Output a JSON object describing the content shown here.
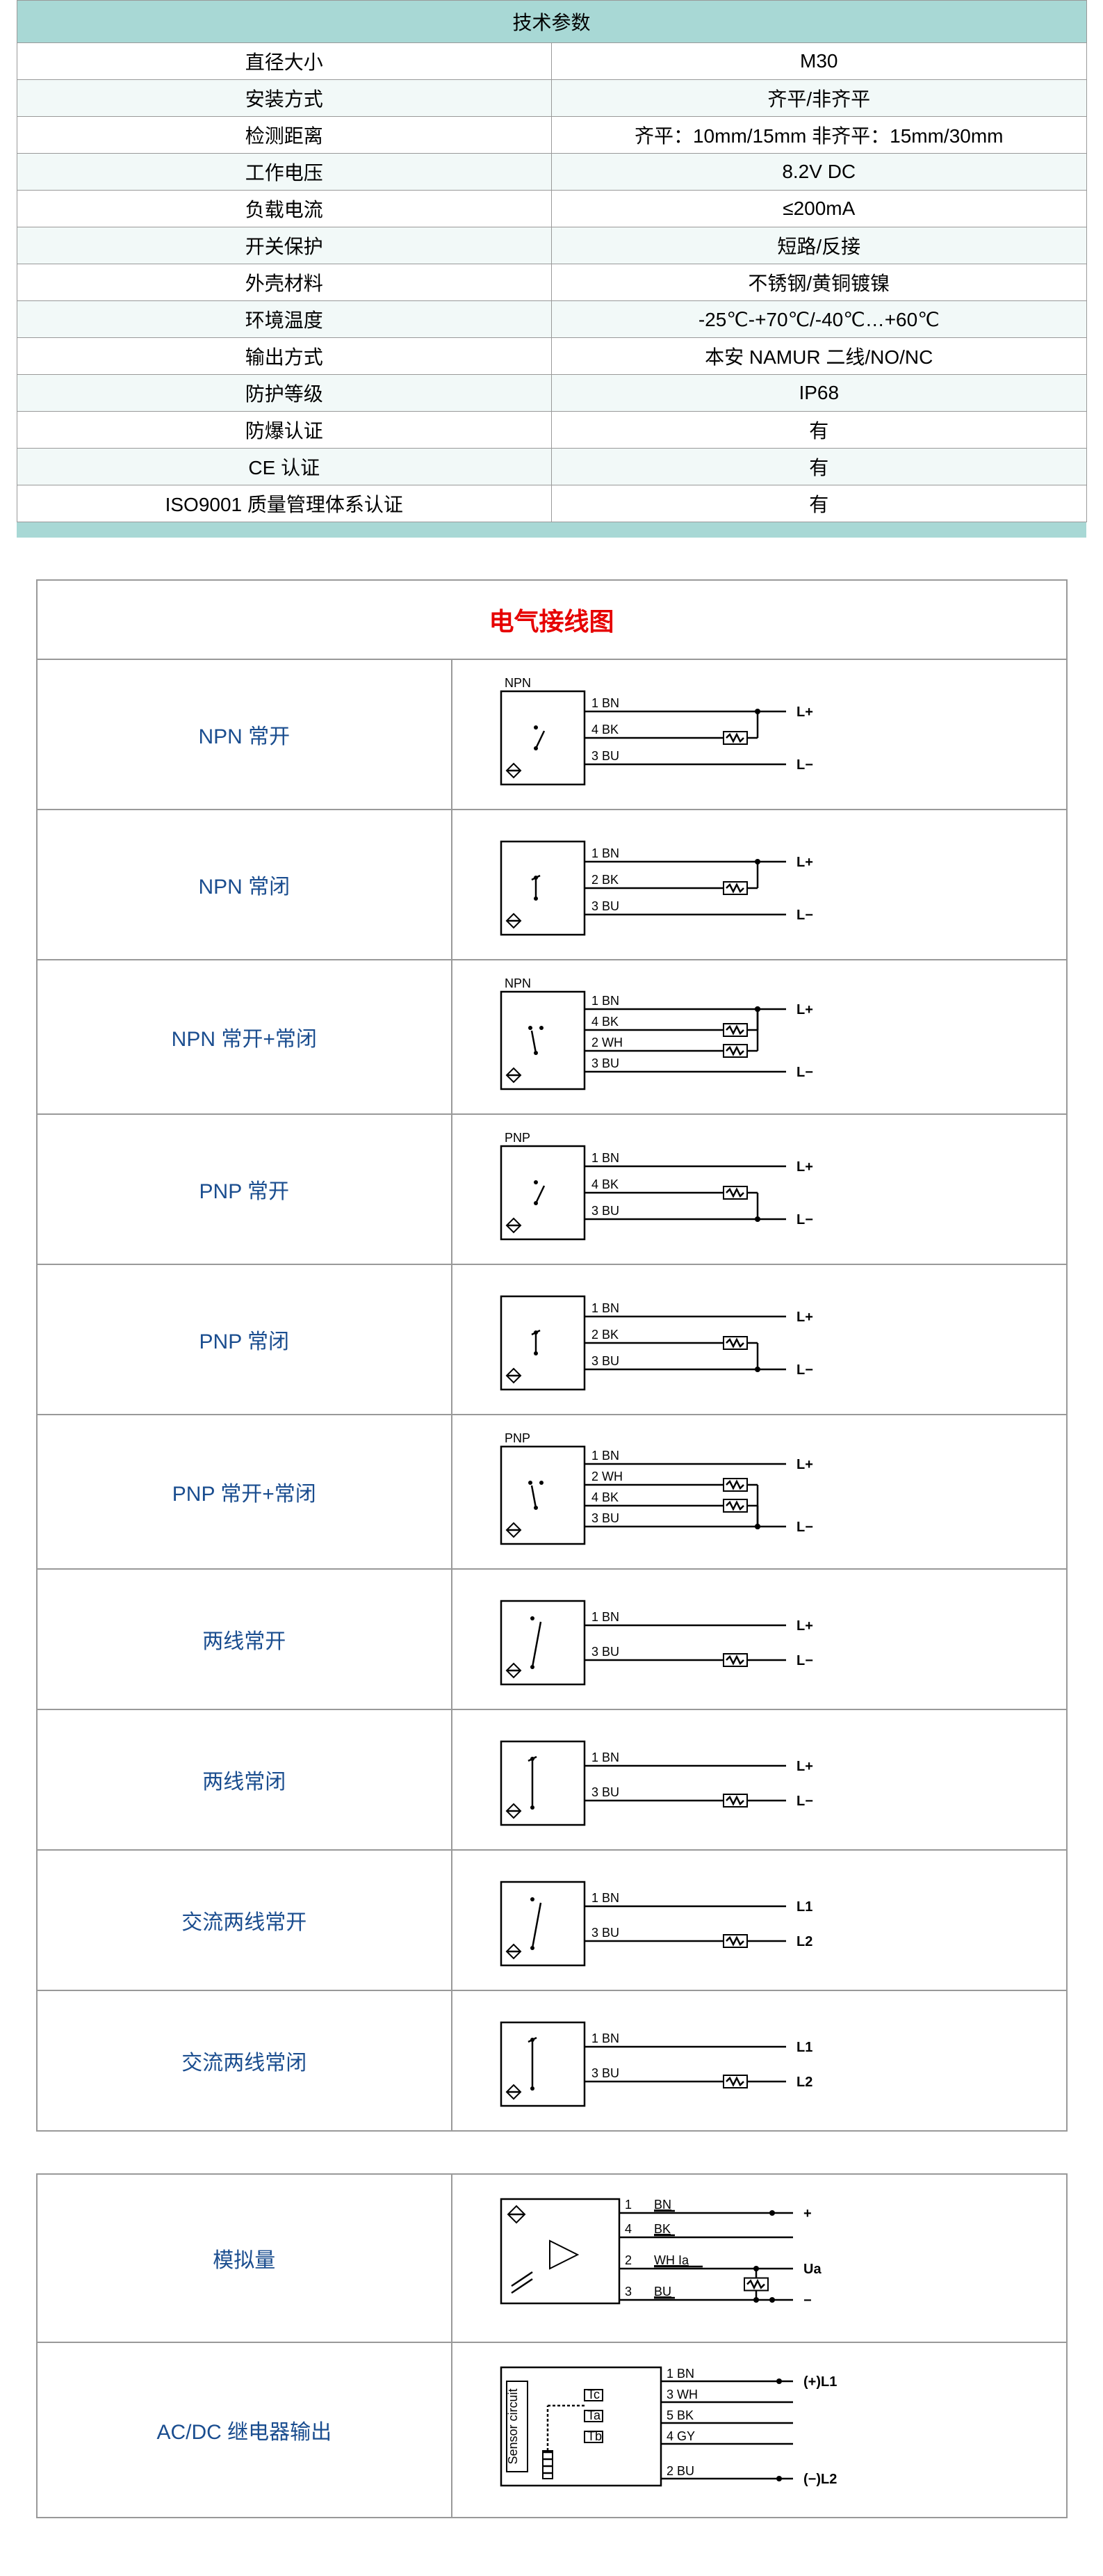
{
  "spec_table": {
    "title": "技术参数",
    "rows": [
      {
        "label": "直径大小",
        "value": "M30"
      },
      {
        "label": "安装方式",
        "value": "齐平/非齐平"
      },
      {
        "label": "检测距离",
        "value": "齐平：10mm/15mm  非齐平：15mm/30mm"
      },
      {
        "label": "工作电压",
        "value": "8.2V DC"
      },
      {
        "label": "负载电流",
        "value": "≤200mA"
      },
      {
        "label": "开关保护",
        "value": "短路/反接"
      },
      {
        "label": "外壳材料",
        "value": "不锈钢/黄铜镀镍"
      },
      {
        "label": "环境温度",
        "value": "-25℃-+70℃/-40℃…+60℃"
      },
      {
        "label": "输出方式",
        "value": "本安 NAMUR 二线/NO/NC"
      },
      {
        "label": "防护等级",
        "value": "IP68"
      },
      {
        "label": "防爆认证",
        "value": "有"
      },
      {
        "label": "CE 认证",
        "value": "有"
      },
      {
        "label": "ISO9001 质量管理体系认证",
        "value": "有"
      }
    ],
    "header_bg": "#a8d8d5",
    "row_alt_bg": "#f2f9f8",
    "font_size": 28
  },
  "wiring": {
    "title": "电气接线图",
    "title_color": "#e60000",
    "label_color": "#1a4d8f",
    "diagrams": [
      {
        "label": "NPN 常开",
        "header": "NPN",
        "wires": [
          {
            "num": "1",
            "color": "BN",
            "term": "L+",
            "load_after": false
          },
          {
            "num": "4",
            "color": "BK",
            "term": "",
            "load_after": true
          },
          {
            "num": "3",
            "color": "BU",
            "term": "L−",
            "load_after": false
          }
        ],
        "load_bridge_to": 0,
        "switch_type": "no"
      },
      {
        "label": "NPN 常闭",
        "header": "",
        "wires": [
          {
            "num": "1",
            "color": "BN",
            "term": "L+",
            "load_after": false
          },
          {
            "num": "2",
            "color": "BK",
            "term": "",
            "load_after": true
          },
          {
            "num": "3",
            "color": "BU",
            "term": "L−",
            "load_after": false
          }
        ],
        "load_bridge_to": 0,
        "switch_type": "nc"
      },
      {
        "label": "NPN  常开+常闭",
        "header": "NPN",
        "wires": [
          {
            "num": "1",
            "color": "BN",
            "term": "L+",
            "load_after": false
          },
          {
            "num": "4",
            "color": "BK",
            "term": "",
            "load_after": true
          },
          {
            "num": "2",
            "color": "WH",
            "term": "",
            "load_after": true
          },
          {
            "num": "3",
            "color": "BU",
            "term": "L−",
            "load_after": false
          }
        ],
        "load_bridge_to": 0,
        "switch_type": "nonc"
      },
      {
        "label": "PNP 常开",
        "header": "PNP",
        "wires": [
          {
            "num": "1",
            "color": "BN",
            "term": "L+",
            "load_after": false
          },
          {
            "num": "4",
            "color": "BK",
            "term": "",
            "load_after": true
          },
          {
            "num": "3",
            "color": "BU",
            "term": "L−",
            "load_after": false
          }
        ],
        "load_bridge_to": 2,
        "switch_type": "no"
      },
      {
        "label": "PNP 常闭",
        "header": "",
        "wires": [
          {
            "num": "1",
            "color": "BN",
            "term": "L+",
            "load_after": false
          },
          {
            "num": "2",
            "color": "BK",
            "term": "",
            "load_after": true
          },
          {
            "num": "3",
            "color": "BU",
            "term": "L−",
            "load_after": false
          }
        ],
        "load_bridge_to": 2,
        "switch_type": "nc"
      },
      {
        "label": "PNP 常开+常闭",
        "header": "PNP",
        "wires": [
          {
            "num": "1",
            "color": "BN",
            "term": "L+",
            "load_after": false
          },
          {
            "num": "2",
            "color": "WH",
            "term": "",
            "load_after": true
          },
          {
            "num": "4",
            "color": "BK",
            "term": "",
            "load_after": true
          },
          {
            "num": "3",
            "color": "BU",
            "term": "L−",
            "load_after": false
          }
        ],
        "load_bridge_to": 3,
        "switch_type": "nonc"
      },
      {
        "label": "两线常开",
        "header": "",
        "wires": [
          {
            "num": "1",
            "color": "BN",
            "term": "L+",
            "load_after": false
          },
          {
            "num": "3",
            "color": "BU",
            "term": "L−",
            "load_inline": true
          }
        ],
        "switch_type": "2wire-no"
      },
      {
        "label": "两线常闭",
        "header": "",
        "wires": [
          {
            "num": "1",
            "color": "BN",
            "term": "L+",
            "load_after": false
          },
          {
            "num": "3",
            "color": "BU",
            "term": "L−",
            "load_inline": true
          }
        ],
        "switch_type": "2wire-nc"
      },
      {
        "label": "交流两线常开",
        "header": "",
        "wires": [
          {
            "num": "1",
            "color": "BN",
            "term": "L1",
            "load_after": false
          },
          {
            "num": "3",
            "color": "BU",
            "term": "L2",
            "load_inline": true
          }
        ],
        "switch_type": "2wire-no"
      },
      {
        "label": "交流两线常闭",
        "header": "",
        "wires": [
          {
            "num": "1",
            "color": "BN",
            "term": "L1",
            "load_after": false
          },
          {
            "num": "3",
            "color": "BU",
            "term": "L2",
            "load_inline": true
          }
        ],
        "switch_type": "2wire-nc"
      }
    ]
  },
  "wiring2": {
    "diagrams": [
      {
        "label": "模拟量",
        "type": "analog",
        "wires": [
          {
            "num": "1",
            "color": "BN",
            "term": "+"
          },
          {
            "num": "4",
            "color": "BK",
            "term": ""
          },
          {
            "num": "2",
            "color": "WH",
            "extra": "Ia",
            "term": "Ua"
          },
          {
            "num": "3",
            "color": "BU",
            "term": "−"
          }
        ]
      },
      {
        "label": "AC/DC 继电器输出",
        "type": "relay",
        "box_label": "Sensor circuit",
        "relay_labels": [
          "Tc",
          "Ta",
          "Tb"
        ],
        "wires": [
          {
            "num": "1",
            "color": "BN",
            "term": "(+)L1"
          },
          {
            "num": "3",
            "color": "WH",
            "term": ""
          },
          {
            "num": "5",
            "color": "BK",
            "term": ""
          },
          {
            "num": "4",
            "color": "GY",
            "term": ""
          },
          {
            "num": "2",
            "color": "BU",
            "term": "(−)L2"
          }
        ]
      }
    ]
  }
}
